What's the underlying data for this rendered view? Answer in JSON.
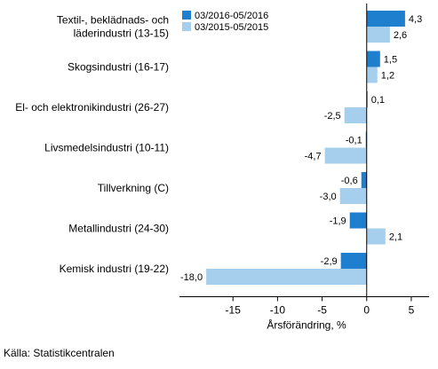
{
  "chart_data": {
    "type": "bar",
    "orientation": "horizontal",
    "categories": [
      "Textil-, beklädnads- och läderindustri (13-15)",
      "Skogsindustri (16-17)",
      "El- och elektronikindustri (26-27)",
      "Livsmedelsindustri (10-11)",
      "Tillverkning (C)",
      "Metallindustri (24-30)",
      "Kemisk industri (19-22)"
    ],
    "series": [
      {
        "name": "03/2016-05/2016",
        "color": "#1f7fcf",
        "values": [
          4.3,
          1.5,
          0.1,
          -0.1,
          -0.6,
          -1.9,
          -2.9
        ],
        "labels": [
          "4,3",
          "1,5",
          "0,1",
          "-0,1",
          "-0,6",
          "-1,9",
          "-2,9"
        ]
      },
      {
        "name": "03/2015-05/2015",
        "color": "#a6cfee",
        "values": [
          2.6,
          1.2,
          -2.5,
          -4.7,
          -3.0,
          2.1,
          -18.0
        ],
        "labels": [
          "2,6",
          "1,2",
          "-2,5",
          "-4,7",
          "-3,0",
          "2,1",
          "-18,0"
        ]
      }
    ],
    "xlabel": "Årsförändring, %",
    "xlim": [
      -21,
      7
    ],
    "xticks": [
      -15,
      -10,
      -5,
      0,
      5
    ],
    "xtick_labels": [
      "-15",
      "-10",
      "-5",
      "0",
      "5"
    ],
    "legend_position": "top-left",
    "grid": false
  },
  "source": "Källa: Statistikcentralen"
}
